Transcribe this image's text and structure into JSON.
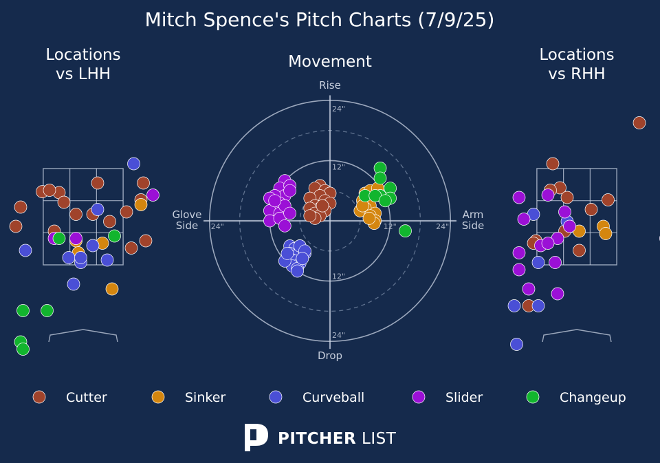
{
  "title": "Mitch Spence's Pitch Charts (7/9/25)",
  "colors": {
    "background": "#152a4c",
    "Cutter": "#a0432b",
    "Sinker": "#d4860f",
    "Curveball": "#4a4fd6",
    "Slider": "#9b10d6",
    "Changeup": "#12b52e"
  },
  "brand": {
    "mark": "P",
    "bold": "PITCHER",
    "light": "LIST"
  },
  "chart_data": [
    {
      "type": "scatter",
      "title": "Locations vs LHH",
      "x": "horizontal location (ft)",
      "xlim": [
        -2.1,
        2.1
      ],
      "ylim": [
        -0.3,
        4.6
      ],
      "strike_zone": {
        "x": [
          -0.83,
          0.83
        ],
        "y": [
          1.5,
          3.5
        ]
      },
      "series": [
        {
          "name": "Cutter",
          "points": [
            [
              -0.5,
              3.0
            ],
            [
              -0.85,
              3.02
            ],
            [
              -0.7,
              3.05
            ],
            [
              -0.4,
              2.8
            ],
            [
              0.3,
              3.2
            ],
            [
              1.25,
              3.2
            ],
            [
              1.2,
              2.85
            ],
            [
              -1.3,
              2.7
            ],
            [
              -0.15,
              2.55
            ],
            [
              0.2,
              2.55
            ],
            [
              0.9,
              2.6
            ],
            [
              -1.4,
              2.3
            ],
            [
              0.55,
              2.4
            ],
            [
              -0.6,
              2.2
            ],
            [
              1.3,
              2.0
            ],
            [
              1.0,
              1.85
            ]
          ]
        },
        {
          "name": "Sinker",
          "points": [
            [
              1.2,
              2.75
            ],
            [
              -0.15,
              2.0
            ],
            [
              0.4,
              1.95
            ],
            [
              -0.1,
              1.75
            ],
            [
              0.6,
              1.0
            ]
          ]
        },
        {
          "name": "Curveball",
          "points": [
            [
              1.05,
              3.6
            ],
            [
              0.3,
              2.65
            ],
            [
              -1.2,
              1.8
            ],
            [
              -0.3,
              1.65
            ],
            [
              -0.05,
              1.55
            ],
            [
              -0.05,
              1.65
            ],
            [
              0.5,
              1.6
            ],
            [
              0.2,
              1.9
            ],
            [
              -0.2,
              1.1
            ]
          ]
        },
        {
          "name": "Slider",
          "points": [
            [
              1.45,
              2.95
            ],
            [
              -0.6,
              2.05
            ],
            [
              -0.15,
              2.05
            ]
          ]
        },
        {
          "name": "Changeup",
          "points": [
            [
              0.65,
              2.1
            ],
            [
              -0.5,
              2.05
            ],
            [
              -1.25,
              0.55
            ],
            [
              -0.75,
              0.55
            ],
            [
              -1.3,
              -0.1
            ],
            [
              -1.25,
              -0.25
            ]
          ]
        }
      ]
    },
    {
      "type": "scatter",
      "title": "Movement",
      "labels": {
        "top": "Rise",
        "bottom": "Drop",
        "left": "Glove\nSide",
        "right": "Arm\nSide"
      },
      "ring_labels": [
        "12\"",
        "24\""
      ],
      "rings": [
        6,
        12,
        18,
        24
      ],
      "xlim": [
        -24,
        24
      ],
      "ylim": [
        -24,
        24
      ],
      "series": [
        {
          "name": "Cutter",
          "points": [
            [
              -2,
              7
            ],
            [
              -3,
              6.5
            ],
            [
              -1,
              6
            ],
            [
              0,
              5.5
            ],
            [
              -2,
              5
            ],
            [
              -4,
              4.5
            ],
            [
              -1,
              4
            ],
            [
              0,
              3.5
            ],
            [
              -3,
              3
            ],
            [
              -2,
              2.5
            ],
            [
              -1,
              2
            ],
            [
              -4,
              2.5
            ],
            [
              -3,
              1.5
            ],
            [
              -2,
              1
            ],
            [
              -3,
              0.5
            ],
            [
              -4,
              1
            ],
            [
              -1.5,
              3
            ]
          ]
        },
        {
          "name": "Sinker",
          "points": [
            [
              7,
              5.5
            ],
            [
              8,
              6
            ],
            [
              6.5,
              4
            ],
            [
              8,
              3
            ],
            [
              7,
              2.5
            ],
            [
              6,
              2
            ],
            [
              9,
              1.5
            ],
            [
              8,
              1
            ],
            [
              6.5,
              3
            ],
            [
              9.5,
              6.5
            ],
            [
              9,
              0
            ],
            [
              8.8,
              -0.5
            ],
            [
              7.8,
              0.5
            ]
          ]
        },
        {
          "name": "Curveball",
          "points": [
            [
              -8,
              -5
            ],
            [
              -7,
              -5.5
            ],
            [
              -6,
              -5
            ],
            [
              -8,
              -6.5
            ],
            [
              -7,
              -7
            ],
            [
              -5,
              -6.5
            ],
            [
              -8,
              -7.5
            ],
            [
              -7,
              -8
            ],
            [
              -6,
              -8.5
            ],
            [
              -7.5,
              -9
            ],
            [
              -9,
              -8
            ],
            [
              -6,
              -5
            ],
            [
              -6.5,
              -9.5
            ],
            [
              -5,
              -6
            ],
            [
              -8.5,
              -6.5
            ],
            [
              -5.5,
              -7.5
            ],
            [
              -6.5,
              -10
            ]
          ]
        },
        {
          "name": "Slider",
          "points": [
            [
              -9,
              8
            ],
            [
              -10,
              6.5
            ],
            [
              -8,
              7
            ],
            [
              -9,
              5
            ],
            [
              -11,
              5
            ],
            [
              -12,
              4.5
            ],
            [
              -10,
              3.5
            ],
            [
              -9,
              2.5
            ],
            [
              -11,
              3
            ],
            [
              -12,
              2
            ],
            [
              -10,
              1.5
            ],
            [
              -9,
              3
            ],
            [
              -8,
              6
            ],
            [
              -12,
              0
            ],
            [
              -10,
              0.5
            ],
            [
              -9,
              -1
            ],
            [
              -8,
              1.5
            ],
            [
              -11,
              4
            ]
          ]
        },
        {
          "name": "Changeup",
          "points": [
            [
              10,
              10.5
            ],
            [
              10,
              8.5
            ],
            [
              12,
              6.5
            ],
            [
              10,
              5
            ],
            [
              12,
              4.5
            ],
            [
              7,
              5
            ],
            [
              9,
              5
            ],
            [
              11,
              4
            ],
            [
              15,
              -2
            ]
          ]
        }
      ]
    },
    {
      "type": "scatter",
      "title": "Locations vs RHH",
      "x": "horizontal location (ft)",
      "xlim": [
        -2.1,
        2.1
      ],
      "ylim": [
        -0.3,
        4.6
      ],
      "strike_zone": {
        "x": [
          -0.83,
          0.83
        ],
        "y": [
          1.5,
          3.5
        ]
      },
      "series": [
        {
          "name": "Cutter",
          "points": [
            [
              1.3,
              4.45
            ],
            [
              -0.5,
              3.6
            ],
            [
              -0.35,
              3.1
            ],
            [
              -0.55,
              3.05
            ],
            [
              -0.2,
              2.9
            ],
            [
              0.65,
              2.85
            ],
            [
              0.3,
              2.65
            ],
            [
              -0.25,
              2.2
            ],
            [
              -0.85,
              2.0
            ],
            [
              0.05,
              1.8
            ],
            [
              -0.9,
              1.95
            ],
            [
              -1.0,
              0.65
            ]
          ]
        },
        {
          "name": "Sinker",
          "points": [
            [
              0.05,
              2.2
            ],
            [
              0.55,
              2.3
            ],
            [
              0.6,
              2.15
            ]
          ]
        },
        {
          "name": "Curveball",
          "points": [
            [
              -0.9,
              2.55
            ],
            [
              -0.2,
              2.4
            ],
            [
              -0.8,
              1.55
            ],
            [
              -1.3,
              0.65
            ],
            [
              -0.8,
              0.65
            ],
            [
              -1.25,
              -0.15
            ]
          ]
        },
        {
          "name": "Slider",
          "points": [
            [
              -0.6,
              2.95
            ],
            [
              -1.2,
              2.9
            ],
            [
              -0.25,
              2.6
            ],
            [
              -1.1,
              2.45
            ],
            [
              -0.15,
              2.3
            ],
            [
              -0.4,
              2.05
            ],
            [
              -0.75,
              1.9
            ],
            [
              -0.6,
              1.95
            ],
            [
              -1.2,
              1.75
            ],
            [
              -1.2,
              1.4
            ],
            [
              -0.45,
              1.55
            ],
            [
              -1.0,
              1.0
            ],
            [
              -0.4,
              0.9
            ],
            [
              1.85,
              2.05
            ]
          ]
        },
        {
          "name": "Changeup",
          "points": []
        }
      ]
    }
  ],
  "legend": {
    "placement": "bottom",
    "items": [
      "Cutter",
      "Sinker",
      "Curveball",
      "Slider",
      "Changeup"
    ]
  }
}
